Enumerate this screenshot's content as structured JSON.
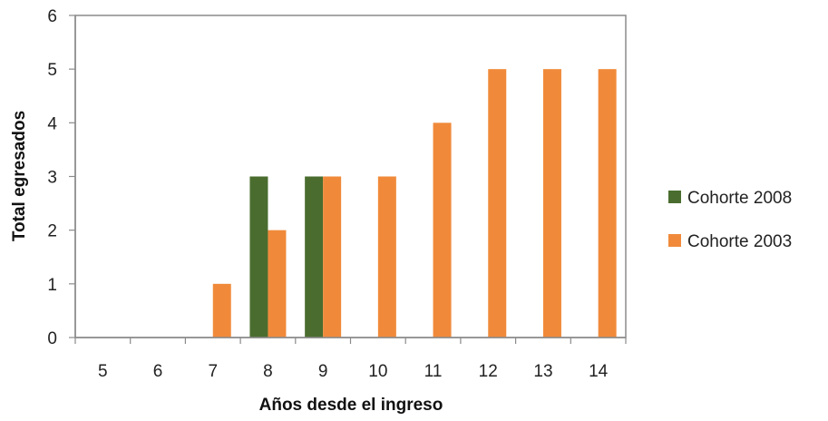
{
  "chart_data": {
    "type": "bar",
    "categories": [
      "5",
      "6",
      "7",
      "8",
      "9",
      "10",
      "11",
      "12",
      "13",
      "14"
    ],
    "series": [
      {
        "name": "Cohorte 2008",
        "color": "#4a6d2f",
        "values": [
          0,
          0,
          0,
          3,
          3,
          0,
          0,
          0,
          0,
          0
        ]
      },
      {
        "name": "Cohorte 2003",
        "color": "#f08a3a",
        "values": [
          0,
          0,
          1,
          2,
          3,
          3,
          4,
          5,
          5,
          5
        ]
      }
    ],
    "title": "",
    "xlabel": "Años desde el ingreso",
    "ylabel": "Total egresados",
    "ylim": [
      0,
      6
    ],
    "yticks": [
      "0",
      "1",
      "2",
      "3",
      "4",
      "5",
      "6"
    ],
    "grid": false,
    "legend_position": "right"
  }
}
